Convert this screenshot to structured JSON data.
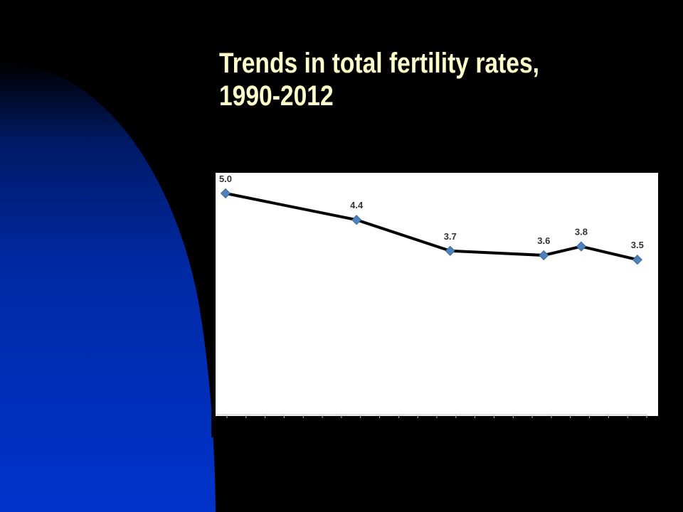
{
  "slide": {
    "title_line1": "Trends in total fertility rates,",
    "title_line2": "1990-2012",
    "title_color": "#FFFFCC",
    "background_color": "#000000",
    "arc_color": "#0033CC"
  },
  "chart_data": {
    "type": "line",
    "title": "",
    "xlabel": "",
    "ylabel": "",
    "x": [
      1990,
      1997,
      2002,
      2007,
      2009,
      2012
    ],
    "values": [
      5.0,
      4.4,
      3.7,
      3.6,
      3.8,
      3.5
    ],
    "labels": [
      "5.0",
      "4.4",
      "3.7",
      "3.6",
      "3.8",
      "3.5"
    ],
    "xlim": [
      1990,
      2012.5
    ],
    "ylim": [
      0,
      5.4
    ],
    "grid": false,
    "legend": "none",
    "line_color": "#000000",
    "marker_color": "#4F81BD",
    "marker": "diamond",
    "plot_background": "#FFFFFF"
  }
}
